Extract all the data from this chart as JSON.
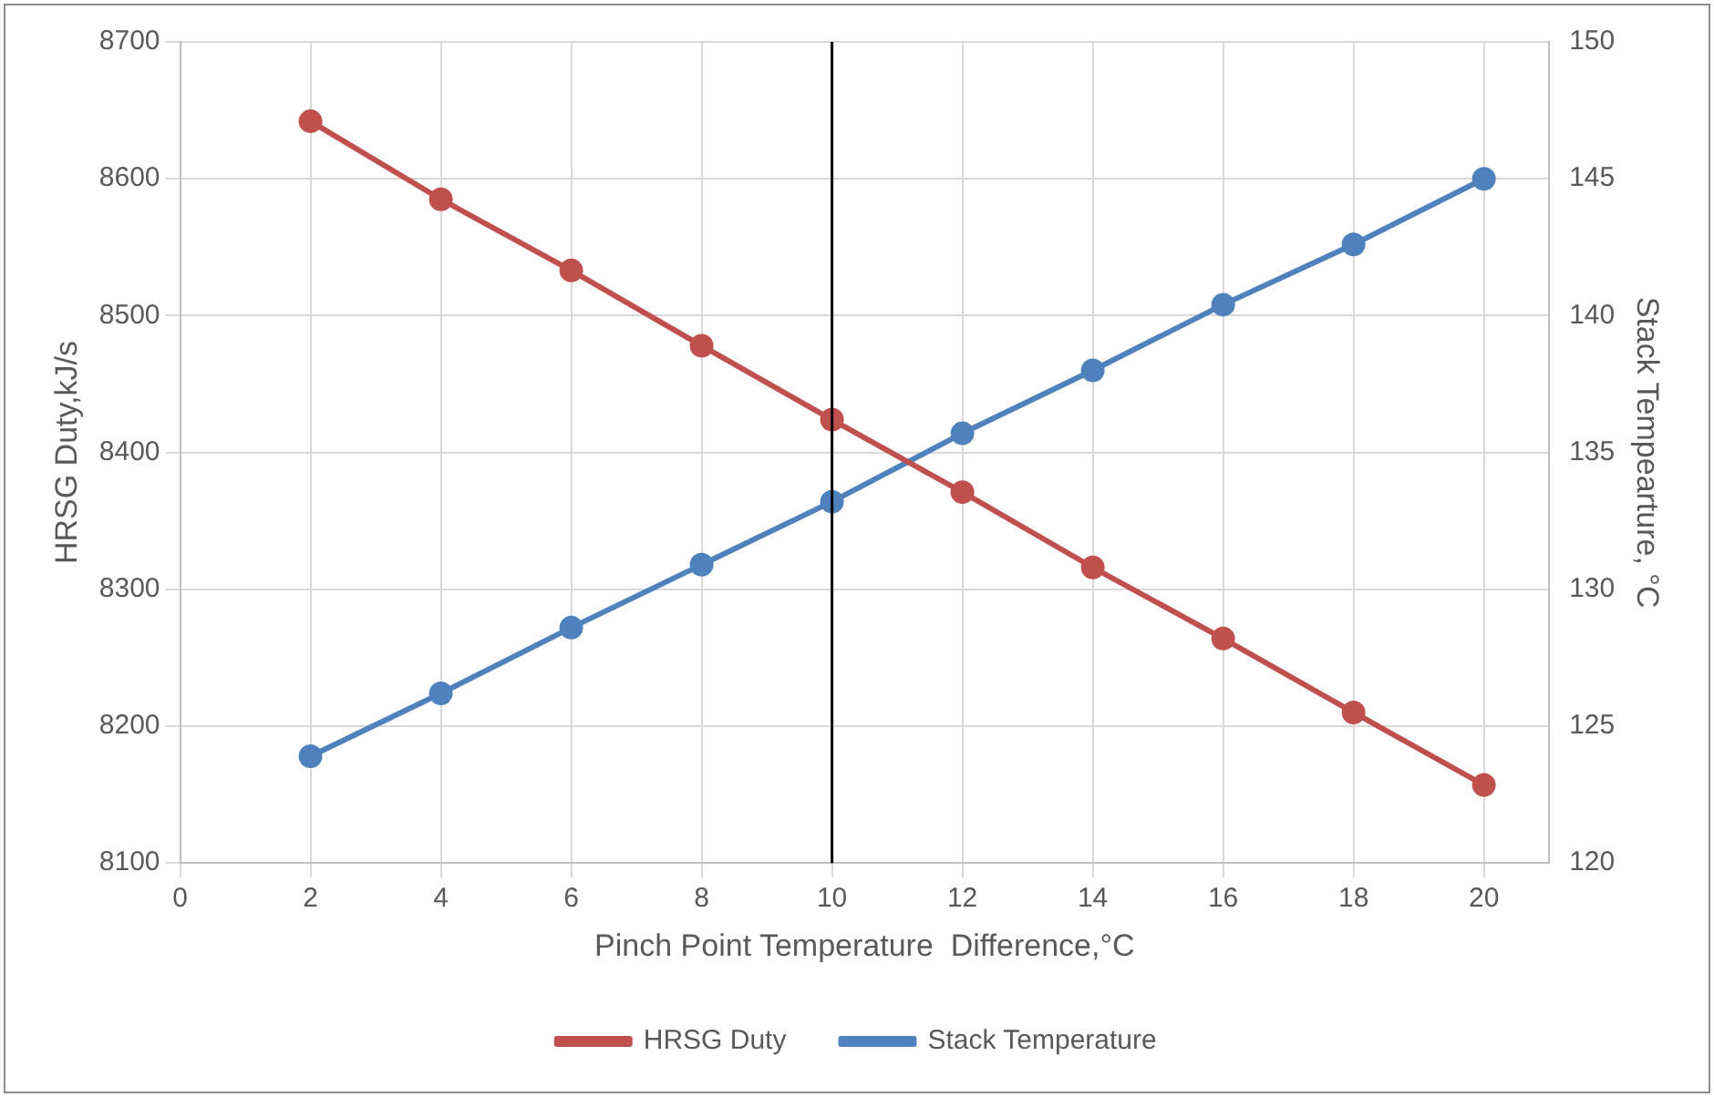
{
  "chart_data": {
    "type": "line",
    "xlabel": "Pinch Point Temperature  Difference,°C",
    "ylabel": "HRSG Duty,kJ/s",
    "y2label": "Stack Tempearture, °C",
    "x": [
      2,
      4,
      6,
      8,
      10,
      12,
      14,
      16,
      18,
      20
    ],
    "series": [
      {
        "name": "HRSG Duty",
        "color": "#c0504d",
        "values": [
          8642,
          8585,
          8533,
          8478,
          8424,
          8371,
          8316,
          8264,
          8210,
          8157
        ]
      },
      {
        "name": "Stack Temperature",
        "color": "#4f81bd",
        "axis": "y2",
        "values": [
          123.9,
          126.2,
          128.6,
          130.9,
          133.2,
          135.7,
          138.0,
          140.4,
          142.6,
          145.0
        ]
      }
    ],
    "xlim": [
      0,
      21
    ],
    "xticks": [
      0,
      2,
      4,
      6,
      8,
      10,
      12,
      14,
      16,
      18,
      20
    ],
    "ylim": [
      8100,
      8700
    ],
    "yticks": [
      8100,
      8200,
      8300,
      8400,
      8500,
      8600,
      8700
    ],
    "y2lim": [
      120,
      150
    ],
    "y2ticks": [
      120,
      125,
      130,
      135,
      140,
      145,
      150
    ],
    "ref_lines": [
      {
        "axis": "x",
        "value": 10,
        "color": "#000000"
      }
    ],
    "grid": true,
    "legend": "bottom",
    "marker": "circle",
    "line_style": "solid"
  }
}
